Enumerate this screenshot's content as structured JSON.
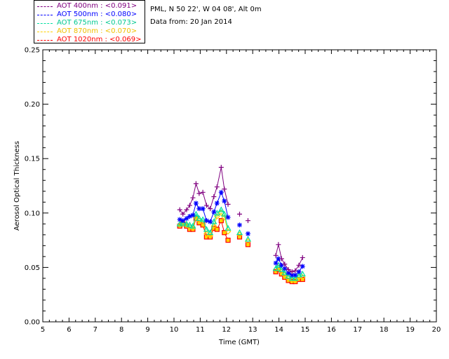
{
  "info": {
    "location": "PML, N 50 22', W 04 08', Alt 0m",
    "date": "Data from: 20 Jan 2014"
  },
  "chart_data": {
    "type": "scatter",
    "xlabel": "Time (GMT)",
    "ylabel": "Aerosol Optical Thickness",
    "xlim": [
      5,
      20
    ],
    "ylim": [
      0,
      0.25
    ],
    "xticks": [
      "5",
      "6",
      "7",
      "8",
      "9",
      "10",
      "11",
      "12",
      "13",
      "14",
      "15",
      "16",
      "17",
      "18",
      "19",
      "20"
    ],
    "yticks": [
      "0.00",
      "0.05",
      "0.10",
      "0.15",
      "0.20",
      "0.25"
    ],
    "legend_placement": "top-left, outside plot",
    "series": [
      {
        "name": "AOT  400nm : <0.091>",
        "color": "#800080",
        "marker": "plus",
        "x": [
          10.22,
          10.34,
          10.48,
          10.6,
          10.72,
          10.84,
          10.96,
          11.1,
          11.24,
          11.38,
          11.52,
          11.64,
          11.8,
          11.92,
          12.06,
          12.5,
          12.82,
          13.88,
          13.98,
          14.1,
          14.22,
          14.36,
          14.5,
          14.62,
          14.76,
          14.9
        ],
        "y": [
          0.103,
          0.099,
          0.103,
          0.107,
          0.114,
          0.127,
          0.118,
          0.119,
          0.107,
          0.104,
          0.115,
          0.124,
          0.142,
          0.122,
          0.108,
          0.099,
          0.093,
          0.061,
          0.071,
          0.058,
          0.053,
          0.048,
          0.046,
          0.047,
          0.052,
          0.059
        ]
      },
      {
        "name": "AOT  500nm : <0.080>",
        "color": "#0000ff",
        "marker": "asterisk",
        "x": [
          10.22,
          10.34,
          10.48,
          10.6,
          10.72,
          10.84,
          10.96,
          11.1,
          11.24,
          11.38,
          11.52,
          11.64,
          11.8,
          11.92,
          12.06,
          12.5,
          12.82,
          13.88,
          13.98,
          14.1,
          14.22,
          14.36,
          14.5,
          14.62,
          14.76,
          14.9
        ],
        "y": [
          0.094,
          0.093,
          0.095,
          0.097,
          0.098,
          0.109,
          0.104,
          0.104,
          0.093,
          0.092,
          0.101,
          0.109,
          0.119,
          0.111,
          0.096,
          0.089,
          0.081,
          0.054,
          0.058,
          0.052,
          0.049,
          0.045,
          0.043,
          0.043,
          0.046,
          0.051
        ]
      },
      {
        "name": "AOT  675nm : <0.073>",
        "color": "#00e0a0",
        "marker": "triangle",
        "x": [
          10.22,
          10.34,
          10.48,
          10.6,
          10.72,
          10.84,
          10.96,
          11.1,
          11.24,
          11.38,
          11.52,
          11.64,
          11.8,
          11.92,
          12.06,
          12.5,
          12.82,
          13.88,
          13.98,
          14.1,
          14.22,
          14.36,
          14.5,
          14.62,
          14.76,
          14.9
        ],
        "y": [
          0.09,
          0.091,
          0.09,
          0.089,
          0.088,
          0.099,
          0.095,
          0.094,
          0.085,
          0.082,
          0.092,
          0.1,
          0.103,
          0.099,
          0.086,
          0.082,
          0.076,
          0.049,
          0.052,
          0.048,
          0.045,
          0.042,
          0.04,
          0.04,
          0.043,
          0.044
        ]
      },
      {
        "name": "AOT  870nm : <0.070>",
        "color": "#ffd000",
        "marker": "diamond",
        "x": [
          10.22,
          10.34,
          10.48,
          10.6,
          10.72,
          10.84,
          10.96,
          11.1,
          11.24,
          11.38,
          11.52,
          11.64,
          11.8,
          11.92,
          12.06,
          12.5,
          12.82,
          13.88,
          13.98,
          14.1,
          14.22,
          14.36,
          14.5,
          14.62,
          14.76,
          14.9
        ],
        "y": [
          0.089,
          0.09,
          0.089,
          0.087,
          0.086,
          0.096,
          0.093,
          0.091,
          0.081,
          0.079,
          0.088,
          0.097,
          0.1,
          0.096,
          0.083,
          0.08,
          0.074,
          0.048,
          0.05,
          0.046,
          0.043,
          0.04,
          0.038,
          0.038,
          0.041,
          0.041
        ]
      },
      {
        "name": "AOT 1020nm : <0.069>",
        "color": "#ff0000",
        "marker": "square",
        "x": [
          10.22,
          10.34,
          10.48,
          10.6,
          10.72,
          10.84,
          10.96,
          11.1,
          11.24,
          11.38,
          11.52,
          11.64,
          11.8,
          11.92,
          12.06,
          12.5,
          12.82,
          13.88,
          13.98,
          14.1,
          14.22,
          14.36,
          14.5,
          14.62,
          14.76,
          14.9
        ],
        "y": [
          0.088,
          0.09,
          0.088,
          0.085,
          0.085,
          0.095,
          0.091,
          0.089,
          0.078,
          0.078,
          0.086,
          0.085,
          0.093,
          0.082,
          0.075,
          0.078,
          0.071,
          0.046,
          0.048,
          0.044,
          0.041,
          0.038,
          0.037,
          0.037,
          0.039,
          0.039
        ]
      }
    ]
  }
}
